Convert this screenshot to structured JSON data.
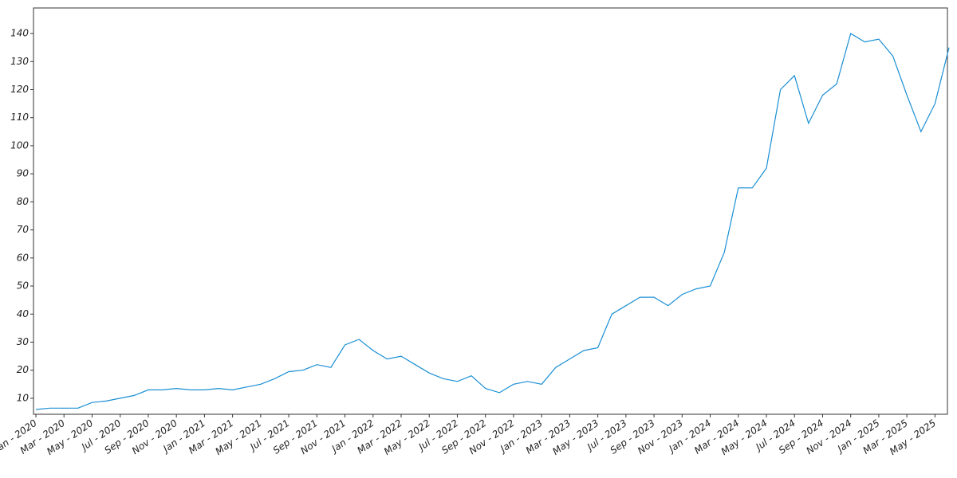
{
  "chart_data": {
    "type": "line",
    "x": [
      "2020-01",
      "2020-02",
      "2020-03",
      "2020-04",
      "2020-05",
      "2020-06",
      "2020-07",
      "2020-08",
      "2020-09",
      "2020-10",
      "2020-11",
      "2020-12",
      "2021-01",
      "2021-02",
      "2021-03",
      "2021-04",
      "2021-05",
      "2021-06",
      "2021-07",
      "2021-08",
      "2021-09",
      "2021-10",
      "2021-11",
      "2021-12",
      "2022-01",
      "2022-02",
      "2022-03",
      "2022-04",
      "2022-05",
      "2022-06",
      "2022-07",
      "2022-08",
      "2022-09",
      "2022-10",
      "2022-11",
      "2022-12",
      "2023-01",
      "2023-02",
      "2023-03",
      "2023-04",
      "2023-05",
      "2023-06",
      "2023-07",
      "2023-08",
      "2023-09",
      "2023-10",
      "2023-11",
      "2023-12",
      "2024-01",
      "2024-02",
      "2024-03",
      "2024-04",
      "2024-05",
      "2024-06",
      "2024-07",
      "2024-08",
      "2024-09",
      "2024-10",
      "2024-11",
      "2024-12",
      "2025-01",
      "2025-02",
      "2025-03",
      "2025-04",
      "2025-05",
      "2025-06"
    ],
    "series": [
      {
        "color": "#1a8fd4",
        "values": [
          6,
          6.5,
          6.5,
          6.5,
          8.5,
          9,
          10,
          11,
          13,
          13,
          13.5,
          13,
          13,
          13.5,
          13,
          14,
          15,
          17,
          19.5,
          20,
          22,
          21,
          29,
          31,
          27,
          24,
          25,
          22,
          19,
          17,
          16,
          18,
          13.5,
          12,
          15,
          16,
          15,
          21,
          24,
          27,
          28,
          40,
          43,
          46,
          46,
          43,
          47,
          49,
          50,
          62,
          85,
          85,
          92,
          120,
          125,
          108,
          118,
          122,
          140,
          137,
          138,
          132,
          118,
          105,
          115,
          135
        ]
      }
    ],
    "xlim": [
      "2020-01",
      "2025-06"
    ],
    "xticks": [
      {
        "value": "2020-01",
        "label": "Jan - 2020"
      },
      {
        "value": "2020-03",
        "label": "Mar - 2020"
      },
      {
        "value": "2020-05",
        "label": "May - 2020"
      },
      {
        "value": "2020-07",
        "label": "Jul - 2020"
      },
      {
        "value": "2020-09",
        "label": "Sep - 2020"
      },
      {
        "value": "2020-11",
        "label": "Nov - 2020"
      },
      {
        "value": "2021-01",
        "label": "Jan - 2021"
      },
      {
        "value": "2021-03",
        "label": "Mar - 2021"
      },
      {
        "value": "2021-05",
        "label": "May - 2021"
      },
      {
        "value": "2021-07",
        "label": "Jul - 2021"
      },
      {
        "value": "2021-09",
        "label": "Sep - 2021"
      },
      {
        "value": "2021-11",
        "label": "Nov - 2021"
      },
      {
        "value": "2022-01",
        "label": "Jan - 2022"
      },
      {
        "value": "2022-03",
        "label": "Mar - 2022"
      },
      {
        "value": "2022-05",
        "label": "May - 2022"
      },
      {
        "value": "2022-07",
        "label": "Jul - 2022"
      },
      {
        "value": "2022-09",
        "label": "Sep - 2022"
      },
      {
        "value": "2022-11",
        "label": "Nov - 2022"
      },
      {
        "value": "2023-01",
        "label": "Jan - 2023"
      },
      {
        "value": "2023-03",
        "label": "Mar - 2023"
      },
      {
        "value": "2023-05",
        "label": "May - 2023"
      },
      {
        "value": "2023-07",
        "label": "Jul - 2023"
      },
      {
        "value": "2023-09",
        "label": "Sep - 2023"
      },
      {
        "value": "2023-11",
        "label": "Nov - 2023"
      },
      {
        "value": "2024-01",
        "label": "Jan - 2024"
      },
      {
        "value": "2024-03",
        "label": "Mar - 2024"
      },
      {
        "value": "2024-05",
        "label": "May - 2024"
      },
      {
        "value": "2024-07",
        "label": "Jul - 2024"
      },
      {
        "value": "2024-09",
        "label": "Sep - 2024"
      },
      {
        "value": "2024-11",
        "label": "Nov - 2024"
      },
      {
        "value": "2025-01",
        "label": "Jan - 2025"
      },
      {
        "value": "2025-03",
        "label": "Mar - 2025"
      },
      {
        "value": "2025-05",
        "label": "May - 2025"
      }
    ],
    "ylim": [
      4.3,
      149.1
    ],
    "yticks": [
      10,
      20,
      30,
      40,
      50,
      60,
      70,
      80,
      90,
      100,
      110,
      120,
      130,
      140
    ]
  }
}
